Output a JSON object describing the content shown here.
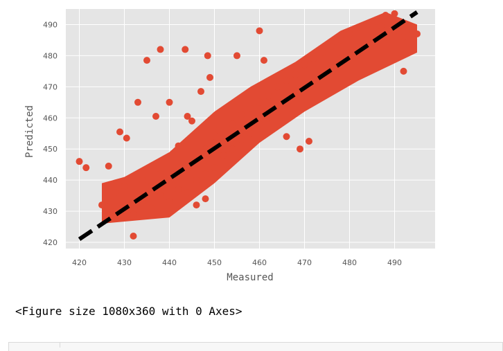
{
  "chart_data": {
    "type": "scatter",
    "xlabel": "Measured",
    "ylabel": "Predicted",
    "xlim": [
      417,
      499
    ],
    "ylim": [
      418,
      495
    ],
    "xticks": [
      420,
      430,
      440,
      450,
      460,
      470,
      480,
      490
    ],
    "yticks": [
      420,
      430,
      440,
      450,
      460,
      470,
      480,
      490
    ],
    "grid": true,
    "background_color": "#e5e5e5",
    "point_color": "#e24a33",
    "reference_line": {
      "x": [
        420,
        495
      ],
      "y": [
        421,
        494
      ],
      "style": "dashed",
      "color": "#000000"
    },
    "core_points": [
      [
        425,
        432
      ],
      [
        426,
        429
      ],
      [
        427,
        433
      ],
      [
        428,
        430
      ],
      [
        428,
        436
      ],
      [
        430,
        431
      ],
      [
        430,
        438
      ],
      [
        432,
        429
      ],
      [
        432,
        436
      ],
      [
        434,
        433
      ],
      [
        434,
        440
      ],
      [
        436,
        431
      ],
      [
        436,
        438
      ],
      [
        438,
        435
      ],
      [
        438,
        442
      ],
      [
        440,
        433
      ],
      [
        440,
        440
      ],
      [
        442,
        437
      ],
      [
        442,
        444
      ],
      [
        444,
        436
      ],
      [
        444,
        443
      ],
      [
        446,
        440
      ],
      [
        446,
        447
      ],
      [
        448,
        442
      ],
      [
        448,
        450
      ],
      [
        450,
        444
      ],
      [
        450,
        452
      ],
      [
        451,
        456
      ],
      [
        452,
        448
      ],
      [
        452,
        455
      ],
      [
        454,
        450
      ],
      [
        454,
        458
      ],
      [
        456,
        453
      ],
      [
        456,
        461
      ],
      [
        458,
        455
      ],
      [
        458,
        463
      ],
      [
        460,
        458
      ],
      [
        460,
        465
      ],
      [
        462,
        460
      ],
      [
        462,
        467
      ],
      [
        464,
        462
      ],
      [
        464,
        470
      ],
      [
        466,
        465
      ],
      [
        466,
        472
      ],
      [
        468,
        468
      ],
      [
        468,
        474
      ],
      [
        470,
        470
      ],
      [
        470,
        477
      ],
      [
        472,
        472
      ],
      [
        472,
        479
      ],
      [
        474,
        474
      ],
      [
        474,
        481
      ],
      [
        476,
        477
      ],
      [
        476,
        483
      ],
      [
        478,
        479
      ],
      [
        478,
        485
      ],
      [
        480,
        481
      ],
      [
        480,
        487
      ],
      [
        482,
        483
      ],
      [
        482,
        489
      ],
      [
        484,
        485
      ],
      [
        484,
        490
      ],
      [
        486,
        484
      ],
      [
        486,
        491
      ],
      [
        488,
        486
      ],
      [
        490,
        488
      ],
      [
        492,
        486
      ],
      [
        494,
        488
      ],
      [
        495,
        487
      ]
    ],
    "outlier_points": [
      [
        420,
        446
      ],
      [
        421.5,
        444
      ],
      [
        426.5,
        444.5
      ],
      [
        429,
        455.5
      ],
      [
        430.5,
        453.5
      ],
      [
        433,
        465
      ],
      [
        435,
        478.5
      ],
      [
        437,
        460.5
      ],
      [
        438,
        482
      ],
      [
        440,
        465
      ],
      [
        442,
        451
      ],
      [
        443.5,
        482
      ],
      [
        444,
        460.5
      ],
      [
        445,
        459
      ],
      [
        447,
        468.5
      ],
      [
        448.5,
        480
      ],
      [
        449,
        473
      ],
      [
        450,
        442
      ],
      [
        455,
        480
      ],
      [
        460,
        488
      ],
      [
        461,
        478.5
      ],
      [
        466,
        454
      ],
      [
        469,
        450
      ],
      [
        471,
        452.5
      ],
      [
        487,
        489.5
      ],
      [
        488,
        493
      ],
      [
        490,
        493.5
      ],
      [
        492,
        475
      ],
      [
        446,
        432
      ],
      [
        432,
        422
      ],
      [
        448,
        434
      ]
    ]
  },
  "caption": "<Figure size 1080x360 with 0 Axes>"
}
